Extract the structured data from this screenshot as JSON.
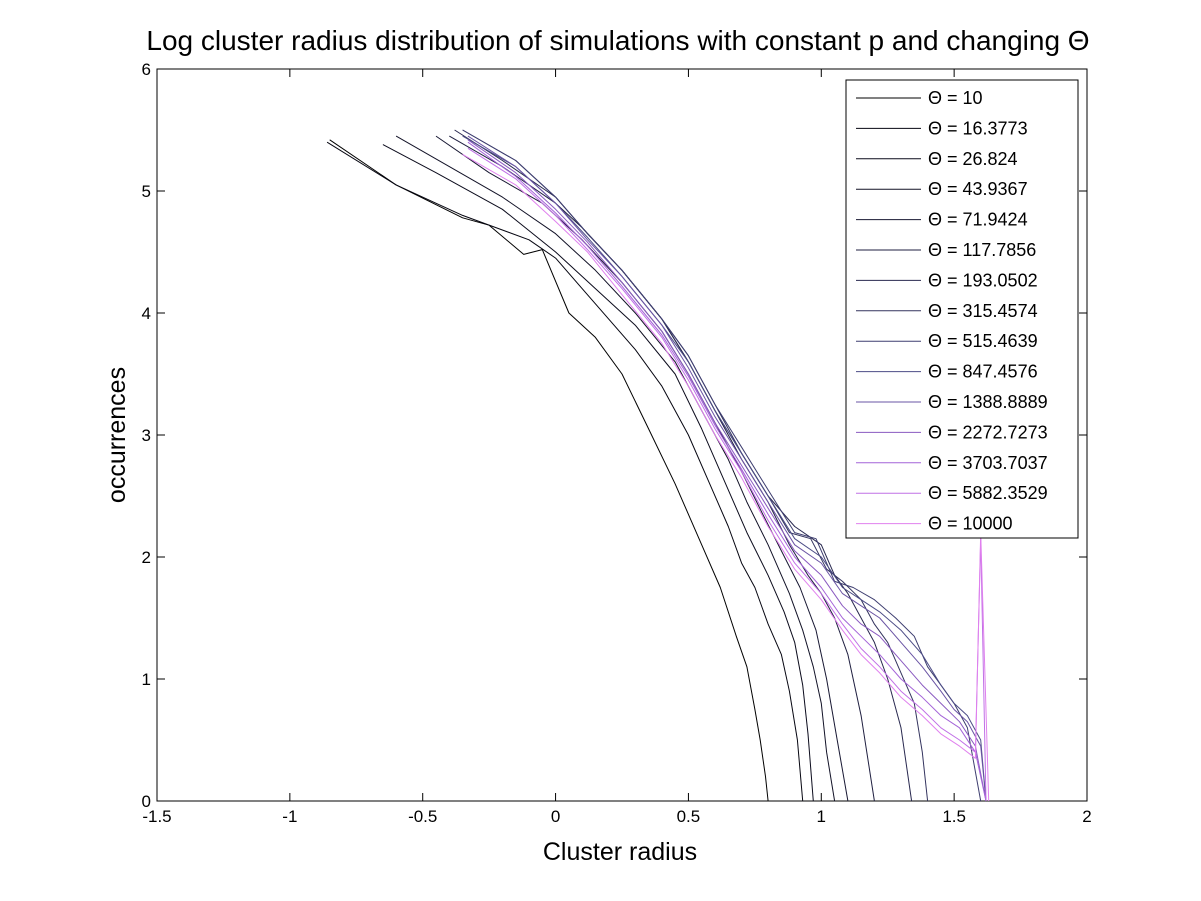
{
  "chart_data": {
    "type": "line",
    "title": "Log cluster radius distribution of simulations with constant p and changing Θ",
    "xlabel": "Cluster radius",
    "ylabel": "occurrences",
    "xlim": [
      -1.5,
      2
    ],
    "ylim": [
      0,
      6
    ],
    "xticks": [
      -1.5,
      -1,
      -0.5,
      0,
      0.5,
      1,
      1.5,
      2
    ],
    "xtick_labels": [
      "-1.5",
      "-1",
      "-0.5",
      "0",
      "0.5",
      "1",
      "1.5",
      "2"
    ],
    "yticks": [
      0,
      1,
      2,
      3,
      4,
      5,
      6
    ],
    "ytick_labels": [
      "0",
      "1",
      "2",
      "3",
      "4",
      "5",
      "6"
    ],
    "grid": false,
    "legend_position": "top-right",
    "series": [
      {
        "name": "Θ = 10",
        "color": "#000000",
        "x": [
          -0.85,
          -0.6,
          -0.35,
          -0.25,
          -0.12,
          -0.05,
          0.05,
          0.15,
          0.25,
          0.35,
          0.45,
          0.55,
          0.62,
          0.68,
          0.72,
          0.75,
          0.77,
          0.79,
          0.8
        ],
        "y": [
          5.42,
          5.05,
          4.78,
          4.72,
          4.48,
          4.52,
          4.0,
          3.8,
          3.5,
          3.05,
          2.6,
          2.1,
          1.75,
          1.35,
          1.1,
          0.75,
          0.5,
          0.2,
          0
        ]
      },
      {
        "name": "Θ = 16.3773",
        "color": "#050510",
        "x": [
          -0.86,
          -0.6,
          -0.35,
          -0.1,
          0.0,
          0.1,
          0.2,
          0.3,
          0.4,
          0.5,
          0.58,
          0.65,
          0.7,
          0.75,
          0.8,
          0.85,
          0.88,
          0.91,
          0.93
        ],
        "y": [
          5.4,
          5.05,
          4.8,
          4.6,
          4.45,
          4.2,
          3.95,
          3.7,
          3.4,
          3.0,
          2.6,
          2.25,
          1.95,
          1.75,
          1.45,
          1.2,
          0.9,
          0.5,
          0
        ]
      },
      {
        "name": "Θ = 26.824",
        "color": "#0b0b1c",
        "x": [
          -0.65,
          -0.45,
          -0.2,
          0.0,
          0.15,
          0.3,
          0.45,
          0.55,
          0.65,
          0.72,
          0.8,
          0.86,
          0.9,
          0.93,
          0.95,
          0.97
        ],
        "y": [
          5.38,
          5.15,
          4.85,
          4.5,
          4.2,
          3.9,
          3.5,
          3.05,
          2.55,
          2.2,
          1.85,
          1.55,
          1.3,
          0.95,
          0.55,
          0
        ]
      },
      {
        "name": "Θ = 43.9367",
        "color": "#121227",
        "x": [
          -0.6,
          -0.4,
          -0.2,
          0.0,
          0.15,
          0.3,
          0.45,
          0.55,
          0.65,
          0.72,
          0.8,
          0.88,
          0.93,
          0.97,
          1.0,
          1.02,
          1.05
        ],
        "y": [
          5.45,
          5.2,
          4.95,
          4.65,
          4.35,
          4.0,
          3.6,
          3.2,
          2.8,
          2.45,
          2.1,
          1.7,
          1.4,
          1.1,
          0.8,
          0.4,
          0
        ]
      },
      {
        "name": "Θ = 71.9424",
        "color": "#181833",
        "x": [
          -0.45,
          -0.25,
          -0.05,
          0.1,
          0.25,
          0.4,
          0.5,
          0.6,
          0.7,
          0.78,
          0.85,
          0.92,
          0.98,
          1.02,
          1.06,
          1.1
        ],
        "y": [
          5.45,
          5.15,
          4.9,
          4.6,
          4.25,
          3.85,
          3.5,
          3.1,
          2.7,
          2.35,
          2.05,
          1.75,
          1.4,
          1.0,
          0.5,
          0
        ]
      },
      {
        "name": "Θ = 117.7856",
        "color": "#1f1f40",
        "x": [
          -0.4,
          -0.2,
          0.0,
          0.1,
          0.25,
          0.4,
          0.5,
          0.6,
          0.7,
          0.8,
          0.88,
          0.95,
          1.0,
          1.05,
          1.1,
          1.15,
          1.2
        ],
        "y": [
          5.45,
          5.2,
          4.9,
          4.7,
          4.35,
          3.95,
          3.6,
          3.2,
          2.8,
          2.45,
          2.1,
          1.85,
          1.7,
          1.5,
          1.2,
          0.7,
          0
        ]
      },
      {
        "name": "Θ = 193.0502",
        "color": "#28284f",
        "x": [
          -0.38,
          -0.2,
          0.0,
          0.12,
          0.25,
          0.4,
          0.5,
          0.6,
          0.7,
          0.8,
          0.9,
          1.0,
          1.05,
          1.1,
          1.15,
          1.2,
          1.25,
          1.3,
          1.34
        ],
        "y": [
          5.5,
          5.25,
          4.95,
          4.65,
          4.35,
          3.95,
          3.6,
          3.2,
          2.85,
          2.5,
          2.25,
          2.1,
          1.85,
          1.7,
          1.5,
          1.3,
          1.0,
          0.6,
          0
        ]
      },
      {
        "name": "Θ = 315.4574",
        "color": "#33335e",
        "x": [
          -0.35,
          -0.15,
          0.0,
          0.12,
          0.25,
          0.4,
          0.5,
          0.6,
          0.7,
          0.8,
          0.88,
          0.96,
          1.02,
          1.08,
          1.15,
          1.2,
          1.25,
          1.3,
          1.35,
          1.38,
          1.4
        ],
        "y": [
          5.5,
          5.25,
          4.95,
          4.65,
          4.35,
          3.95,
          3.65,
          3.25,
          2.85,
          2.5,
          2.2,
          2.15,
          1.9,
          1.8,
          1.65,
          1.45,
          1.3,
          1.05,
          0.8,
          0.4,
          0
        ]
      },
      {
        "name": "Θ = 515.4639",
        "color": "#3e3e70",
        "x": [
          -0.35,
          -0.15,
          0.0,
          0.12,
          0.25,
          0.4,
          0.5,
          0.6,
          0.7,
          0.8,
          0.9,
          0.98,
          1.05,
          1.12,
          1.2,
          1.28,
          1.35,
          1.4,
          1.45,
          1.5,
          1.55,
          1.6
        ],
        "y": [
          5.5,
          5.25,
          4.95,
          4.65,
          4.35,
          3.95,
          3.65,
          3.25,
          2.9,
          2.55,
          2.2,
          2.15,
          1.8,
          1.75,
          1.65,
          1.5,
          1.35,
          1.1,
          0.95,
          0.8,
          0.6,
          0
        ]
      },
      {
        "name": "Θ = 847.4576",
        "color": "#4c4c86",
        "x": [
          -0.35,
          -0.15,
          0.0,
          0.12,
          0.25,
          0.4,
          0.5,
          0.6,
          0.7,
          0.8,
          0.9,
          1.0,
          1.08,
          1.15,
          1.22,
          1.3,
          1.38,
          1.45,
          1.5,
          1.55,
          1.6,
          1.62
        ],
        "y": [
          5.45,
          5.2,
          4.9,
          4.62,
          4.3,
          3.9,
          3.6,
          3.2,
          2.85,
          2.5,
          2.15,
          2.0,
          1.75,
          1.65,
          1.55,
          1.4,
          1.2,
          0.95,
          0.8,
          0.7,
          0.5,
          0
        ]
      },
      {
        "name": "Θ = 1388.8889",
        "color": "#6a54a4",
        "x": [
          -0.33,
          -0.15,
          0.0,
          0.12,
          0.25,
          0.4,
          0.5,
          0.6,
          0.7,
          0.8,
          0.9,
          1.0,
          1.08,
          1.15,
          1.22,
          1.3,
          1.38,
          1.45,
          1.5,
          1.55,
          1.6,
          1.62
        ],
        "y": [
          5.45,
          5.2,
          4.9,
          4.6,
          4.3,
          3.9,
          3.55,
          3.15,
          2.8,
          2.45,
          2.1,
          1.95,
          1.7,
          1.6,
          1.5,
          1.3,
          1.1,
          0.9,
          0.75,
          0.65,
          0.45,
          0
        ]
      },
      {
        "name": "Θ = 2272.7273",
        "color": "#8a5ac0",
        "x": [
          -0.33,
          -0.15,
          0.0,
          0.12,
          0.25,
          0.4,
          0.5,
          0.6,
          0.7,
          0.8,
          0.9,
          1.0,
          1.08,
          1.15,
          1.22,
          1.3,
          1.38,
          1.45,
          1.52,
          1.58,
          1.62
        ],
        "y": [
          5.42,
          5.15,
          4.85,
          4.58,
          4.25,
          3.85,
          3.5,
          3.1,
          2.75,
          2.4,
          2.05,
          1.85,
          1.6,
          1.45,
          1.35,
          1.15,
          0.95,
          0.8,
          0.65,
          0.45,
          0
        ]
      },
      {
        "name": "Θ = 3703.7037",
        "color": "#a464d8",
        "x": [
          -0.33,
          -0.15,
          0.0,
          0.12,
          0.25,
          0.4,
          0.5,
          0.6,
          0.7,
          0.8,
          0.9,
          1.0,
          1.08,
          1.15,
          1.22,
          1.3,
          1.38,
          1.45,
          1.52,
          1.58,
          1.62
        ],
        "y": [
          5.4,
          5.12,
          4.82,
          4.55,
          4.22,
          3.82,
          3.48,
          3.08,
          2.72,
          2.35,
          2.0,
          1.75,
          1.5,
          1.35,
          1.2,
          1.0,
          0.85,
          0.7,
          0.6,
          0.4,
          0
        ]
      },
      {
        "name": "Θ = 5882.3529",
        "color": "#c070e6",
        "x": [
          -0.33,
          -0.15,
          0.0,
          0.12,
          0.25,
          0.4,
          0.5,
          0.6,
          0.7,
          0.8,
          0.9,
          1.0,
          1.08,
          1.15,
          1.22,
          1.3,
          1.38,
          1.45,
          1.52,
          1.58,
          1.6,
          1.62
        ],
        "y": [
          5.35,
          5.1,
          4.8,
          4.52,
          4.2,
          3.8,
          3.45,
          3.05,
          2.7,
          2.3,
          1.95,
          1.7,
          1.45,
          1.25,
          1.1,
          0.9,
          0.75,
          0.6,
          0.5,
          0.4,
          2.15,
          0
        ]
      },
      {
        "name": "Θ = 10000",
        "color": "#e080ee",
        "x": [
          -0.35,
          -0.15,
          0.0,
          0.12,
          0.25,
          0.4,
          0.5,
          0.6,
          0.7,
          0.8,
          0.9,
          1.0,
          1.08,
          1.15,
          1.22,
          1.3,
          1.38,
          1.45,
          1.52,
          1.58,
          1.6,
          1.63
        ],
        "y": [
          5.3,
          5.05,
          4.75,
          4.5,
          4.15,
          3.75,
          3.4,
          3.0,
          2.65,
          2.25,
          1.9,
          1.65,
          1.4,
          1.2,
          1.05,
          0.85,
          0.7,
          0.55,
          0.45,
          0.35,
          2.2,
          0
        ]
      }
    ]
  }
}
